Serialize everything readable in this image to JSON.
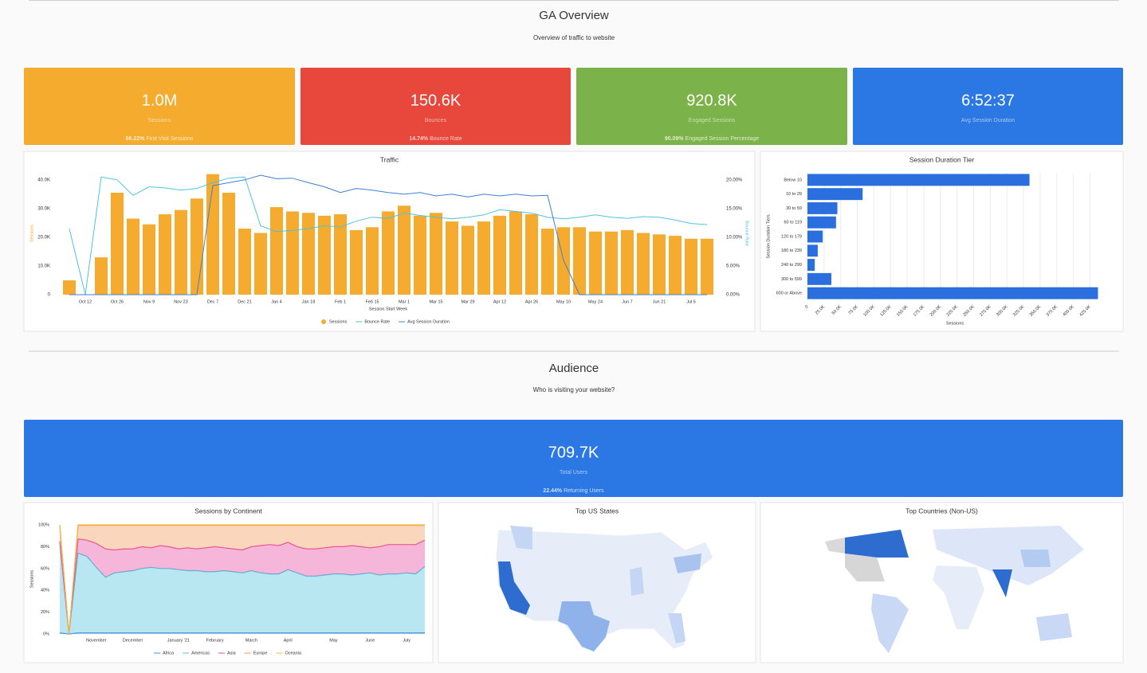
{
  "sections": [
    {
      "title": "GA Overview",
      "subtitle": "Overview of traffic to website"
    },
    {
      "title": "Audience",
      "subtitle": "Who is visiting your website?"
    }
  ],
  "kpis": [
    {
      "value": "1.0M",
      "label": "Sessions",
      "sub_value": "66.22%",
      "sub_label": "First Visit Sessions",
      "color": "#f4ab2e"
    },
    {
      "value": "150.6K",
      "label": "Bounces",
      "sub_value": "14.74%",
      "sub_label": "Bounce Rate",
      "color": "#e8473b"
    },
    {
      "value": "920.8K",
      "label": "Engaged Sessions",
      "sub_value": "90.09%",
      "sub_label": "Engaged Session Percentage",
      "color": "#7cb24a"
    },
    {
      "value": "6:52:37",
      "label": "Avg Session Duration",
      "color": "#2b78e4"
    },
    {
      "value": "709.7K",
      "label": "Total Users",
      "sub_value": "22.44%",
      "sub_label": "Returning Users",
      "color": "#2b78e4"
    }
  ],
  "chart_data": [
    {
      "type": "combo",
      "title": "Traffic",
      "xlabel": "Session Start Week",
      "ylabel": "Sessions",
      "y2label": "Bounce Rate",
      "grid": false,
      "legend": "bottom",
      "categories": [
        null,
        "Oct 12",
        null,
        "Oct 26",
        null,
        "Nov 9",
        null,
        "Nov 23",
        null,
        "Dec 7",
        null,
        "Dec 21",
        null,
        "Jan 4",
        null,
        "Jan 18",
        null,
        "Feb 1",
        null,
        "Feb 15",
        null,
        "Mar 1",
        null,
        "Mar 15",
        null,
        "Mar 29",
        null,
        "Apr 12",
        null,
        "Apr 26",
        null,
        "May 10",
        null,
        "May 24",
        null,
        "Jun 7",
        null,
        "Jun 21",
        null,
        "Jul 5",
        null
      ],
      "series": [
        {
          "name": "Sessions",
          "type": "bar",
          "color": "#f4ab2e",
          "values": [
            5000,
            0,
            13000,
            35500,
            26500,
            24500,
            28000,
            29500,
            33500,
            42000,
            35500,
            23000,
            21500,
            30500,
            29000,
            28500,
            27500,
            28000,
            22500,
            23500,
            29000,
            31000,
            27500,
            28500,
            25500,
            24000,
            25500,
            27500,
            29000,
            28000,
            23000,
            23500,
            23500,
            22000,
            22000,
            22500,
            21500,
            21000,
            20500,
            19500,
            19500
          ]
        },
        {
          "name": "Bounce Rate",
          "type": "line",
          "axis": "y2",
          "color": "#4fc3dc",
          "values": [
            11.5,
            0,
            20.5,
            20,
            17.3,
            18.8,
            18.6,
            18.2,
            18.5,
            19.5,
            20.3,
            20.5,
            12,
            11,
            11.2,
            11.5,
            12,
            11.8,
            12.8,
            13.5,
            13.3,
            14.2,
            13.8,
            13.5,
            13.2,
            13.5,
            13.9,
            14.8,
            14.5,
            14.2,
            13.5,
            13.2,
            13.5,
            13.9,
            13.5,
            13.3,
            13.6,
            13.5,
            13,
            12.4,
            12.2
          ]
        },
        {
          "name": "Avg Session Duration",
          "type": "line",
          "axis": "y2",
          "color": "#3f7fd6",
          "values": [
            0,
            0,
            0,
            0,
            0,
            0,
            0,
            0,
            0,
            19,
            19.5,
            20,
            20.8,
            20.2,
            20.3,
            19.5,
            18.8,
            17.8,
            18.5,
            18.2,
            17.8,
            17.5,
            17.8,
            17.2,
            17.5,
            17,
            17.5,
            17.2,
            17.5,
            17.2,
            17.3,
            6,
            0,
            0,
            0,
            0,
            0,
            0,
            0,
            0,
            0
          ]
        }
      ],
      "ylim": [
        0,
        43000
      ],
      "yticks": [
        0,
        {
          "value": 10000,
          "label": "10.0K"
        },
        {
          "value": 20000,
          "label": "20.0K"
        },
        {
          "value": 30000,
          "label": "30.0K"
        },
        {
          "value": 40000,
          "label": "40.0K"
        }
      ],
      "y2lim": [
        0,
        21.5
      ],
      "y2ticks": [
        {
          "value": 0,
          "label": "0.00%"
        },
        {
          "value": 5,
          "label": "5.00%"
        },
        {
          "value": 10,
          "label": "10.00%"
        },
        {
          "value": 15,
          "label": "15.00%"
        },
        {
          "value": 20,
          "label": "20.00%"
        }
      ]
    },
    {
      "type": "hbar",
      "title": "Session Duration Tier",
      "xlabel": "Sessions",
      "ylabel": "Session Duration Tiers",
      "grid": true,
      "color": "#2b6fde",
      "categories": [
        "Below 10",
        "10 to 29",
        "30 to 59",
        "60 to 119",
        "120 to 179",
        "180 to 239",
        "240 to 299",
        "300 to 599",
        "600 or Above"
      ],
      "values": [
        334000,
        83000,
        45000,
        43000,
        23000,
        15500,
        11000,
        36000,
        437000
      ],
      "xlim": [
        0,
        440000
      ],
      "xticks": [
        0,
        {
          "value": 25000,
          "label": "25.0K"
        },
        {
          "value": 50000,
          "label": "50.0K"
        },
        {
          "value": 75000,
          "label": "75.0K"
        },
        {
          "value": 100000,
          "label": "100.0K"
        },
        {
          "value": 125000,
          "label": "125.0K"
        },
        {
          "value": 150000,
          "label": "150.0K"
        },
        {
          "value": 175000,
          "label": "175.0K"
        },
        {
          "value": 200000,
          "label": "200.0K"
        },
        {
          "value": 225000,
          "label": "225.0K"
        },
        {
          "value": 250000,
          "label": "250.0K"
        },
        {
          "value": 275000,
          "label": "275.0K"
        },
        {
          "value": 300000,
          "label": "300.0K"
        },
        {
          "value": 325000,
          "label": "325.0K"
        },
        {
          "value": 350000,
          "label": "350.0K"
        },
        {
          "value": 375000,
          "label": "375.0K"
        },
        {
          "value": 400000,
          "label": "400.0K"
        },
        {
          "value": 425000,
          "label": "425.0K"
        }
      ]
    },
    {
      "type": "stacked_area",
      "title": "Sessions by Continent",
      "ylabel": "Sessions",
      "grid": false,
      "legend": "bottom",
      "categories": [
        null,
        null,
        null,
        null,
        "November",
        null,
        null,
        null,
        "December",
        null,
        null,
        null,
        null,
        "January '21",
        null,
        null,
        null,
        "February",
        null,
        null,
        null,
        "March",
        null,
        null,
        null,
        "April",
        null,
        null,
        null,
        null,
        "May",
        null,
        null,
        null,
        "June",
        null,
        null,
        null,
        "July",
        null,
        null
      ],
      "series": [
        {
          "name": "Africa",
          "color": "#4a90e2",
          "values": [
            1,
            0,
            1,
            1,
            1,
            1,
            1,
            1,
            1,
            1,
            1,
            1,
            1,
            1,
            1,
            1,
            1,
            1,
            1,
            1,
            1,
            1,
            1,
            1,
            1,
            1,
            1,
            1,
            1,
            1,
            1,
            1,
            1,
            1,
            1,
            1,
            1,
            1,
            1,
            1,
            1
          ]
        },
        {
          "name": "Americas",
          "color": "#4fc3dc",
          "values": [
            83,
            0,
            73,
            70,
            60,
            51,
            55,
            56,
            57,
            59,
            60,
            59,
            59,
            58,
            57,
            57,
            56,
            56,
            57,
            56,
            55,
            57,
            55,
            54,
            54,
            58,
            55,
            52,
            52,
            53,
            54,
            54,
            53,
            54,
            55,
            53,
            54,
            54,
            55,
            54,
            61
          ]
        },
        {
          "name": "Asia",
          "color": "#e6489f",
          "values": [
            1,
            0,
            13,
            15,
            22,
            26,
            21,
            21,
            20,
            20,
            18,
            21,
            20,
            19,
            21,
            20,
            22,
            23,
            21,
            21,
            21,
            22,
            25,
            27,
            26,
            25,
            24,
            25,
            25,
            25,
            25,
            25,
            27,
            25,
            23,
            26,
            27,
            27,
            26,
            27,
            24
          ]
        },
        {
          "name": "Europe",
          "color": "#f2995a",
          "values": [
            14.5,
            0,
            12.5,
            13.5,
            16.5,
            21.5,
            22.5,
            21.5,
            21.5,
            19.5,
            20.5,
            18.5,
            19.5,
            21.5,
            20.5,
            21.5,
            20.5,
            19.5,
            20.5,
            21.5,
            22.5,
            19.5,
            18.5,
            17.5,
            18.5,
            15.5,
            19.5,
            21.5,
            21.5,
            20.5,
            19.5,
            19.5,
            18.5,
            19.5,
            20.5,
            19.5,
            17.5,
            17.5,
            17.5,
            17.5,
            13.5
          ]
        },
        {
          "name": "Oceania",
          "color": "#f5b942",
          "values": [
            0.5,
            0,
            0.5,
            0.5,
            0.5,
            0.5,
            0.5,
            0.5,
            0.5,
            0.5,
            0.5,
            0.5,
            0.5,
            0.5,
            0.5,
            0.5,
            0.5,
            0.5,
            0.5,
            0.5,
            0.5,
            0.5,
            0.5,
            0.5,
            0.5,
            0.5,
            0.5,
            0.5,
            0.5,
            0.5,
            0.5,
            0.5,
            0.5,
            0.5,
            0.5,
            0.5,
            0.5,
            0.5,
            0.5,
            0.5,
            0.5
          ]
        }
      ],
      "ylim": [
        0,
        100
      ],
      "yticks": [
        {
          "value": 0,
          "label": "0%"
        },
        {
          "value": 20,
          "label": "20%"
        },
        {
          "value": 40,
          "label": "40%"
        },
        {
          "value": 60,
          "label": "60%"
        },
        {
          "value": 80,
          "label": "80%"
        },
        {
          "value": 100,
          "label": "100%"
        }
      ]
    },
    {
      "type": "map",
      "title": "Top US States"
    },
    {
      "type": "map",
      "title": "Top Countries (Non-US)"
    }
  ]
}
